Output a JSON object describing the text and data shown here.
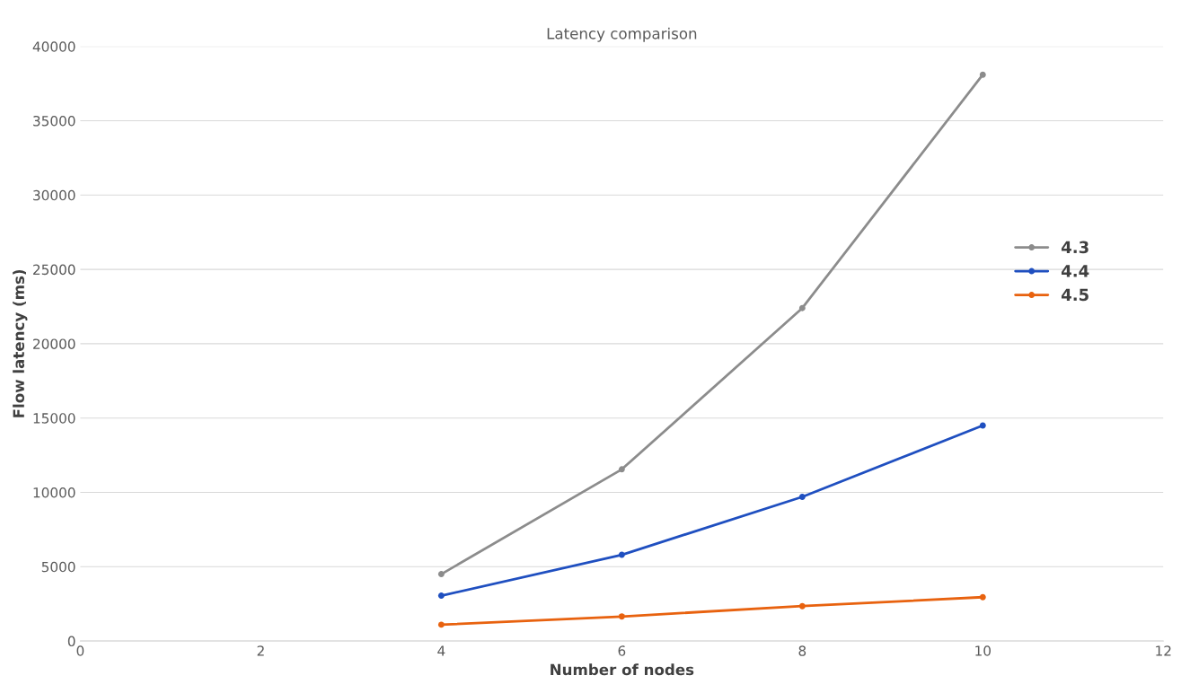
{
  "chart_data": {
    "type": "line",
    "title": "Latency comparison",
    "xlabel": "Number of nodes",
    "ylabel": "Flow latency (ms)",
    "x": [
      4,
      6,
      8,
      10
    ],
    "series": [
      {
        "name": "4.3",
        "color": "#8c8c8c",
        "values": [
          4500,
          11550,
          22400,
          38100
        ]
      },
      {
        "name": "4.4",
        "color": "#1f4fc0",
        "values": [
          3050,
          5800,
          9700,
          14500
        ]
      },
      {
        "name": "4.5",
        "color": "#e8620f",
        "values": [
          1100,
          1650,
          2350,
          2950
        ]
      }
    ],
    "xlim": [
      0,
      12
    ],
    "xticks": [
      0,
      2,
      4,
      6,
      8,
      10,
      12
    ],
    "ylim": [
      0,
      40000
    ],
    "yticks": [
      0,
      5000,
      10000,
      15000,
      20000,
      25000,
      30000,
      35000,
      40000
    ],
    "grid": "y",
    "legend": "right",
    "marker": "circle",
    "line_style": "solid"
  }
}
